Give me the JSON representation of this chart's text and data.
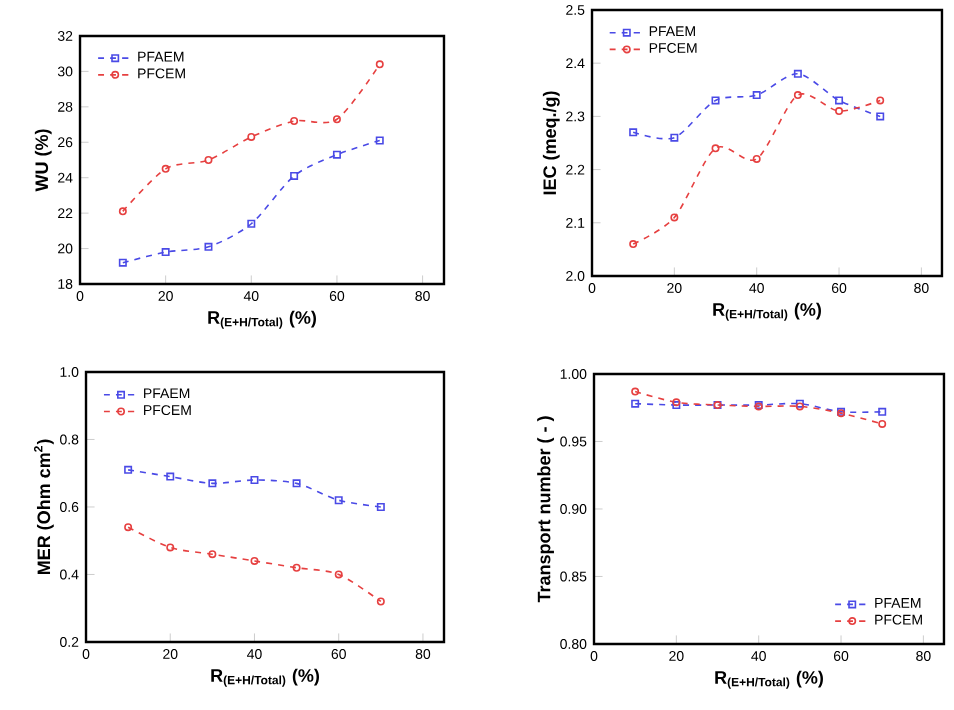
{
  "chart_data": [
    {
      "type": "line",
      "xlabel": "R$_{(E+H/Total)}$ (%)",
      "ylabel": "WU (%)",
      "x": [
        10,
        20,
        30,
        40,
        50,
        60,
        70
      ],
      "xlim": [
        0,
        85
      ],
      "xticks": [
        0,
        20,
        40,
        60,
        80
      ],
      "ylim": [
        18,
        32
      ],
      "yticks": [
        18,
        20,
        22,
        24,
        26,
        28,
        30,
        32
      ],
      "legend": "top left",
      "line_style": "dashed",
      "series": [
        {
          "name": "PFAEM",
          "color": "#4a4ae6",
          "marker": "square",
          "values": [
            19.2,
            19.8,
            20.1,
            21.4,
            24.1,
            25.3,
            26.1
          ]
        },
        {
          "name": "PFCEM",
          "color": "#e64040",
          "marker": "circle",
          "values": [
            22.1,
            24.5,
            25.0,
            26.3,
            27.2,
            27.3,
            30.4
          ]
        }
      ]
    },
    {
      "type": "line",
      "xlabel": "R$_{(E+H/Total)}$ (%)",
      "ylabel": "IEC (meq./g)",
      "x": [
        10,
        20,
        30,
        40,
        50,
        60,
        70
      ],
      "xlim": [
        0,
        85
      ],
      "xticks": [
        0,
        20,
        40,
        60,
        80
      ],
      "ylim": [
        2.0,
        2.5
      ],
      "yticks": [
        {
          "value": 2.0,
          "label": "2.0"
        },
        2.1,
        2.2,
        2.3,
        2.4,
        2.5
      ],
      "legend": "top left",
      "line_style": "dashed",
      "series": [
        {
          "name": "PFAEM",
          "color": "#4a4ae6",
          "marker": "square",
          "values": [
            2.27,
            2.26,
            2.33,
            2.34,
            2.38,
            2.33,
            2.3
          ]
        },
        {
          "name": "PFCEM",
          "color": "#e64040",
          "marker": "circle",
          "values": [
            2.06,
            2.11,
            2.24,
            2.22,
            2.34,
            2.31,
            2.33
          ]
        }
      ]
    },
    {
      "type": "line",
      "xlabel": "R$_{(E+H/Total)}$ (%)",
      "ylabel": "MER (Ohm cm$^{2}$)",
      "x": [
        10,
        20,
        30,
        40,
        50,
        60,
        70
      ],
      "xlim": [
        0,
        85
      ],
      "xticks": [
        0,
        20,
        40,
        60,
        80
      ],
      "ylim": [
        0.2,
        1.0
      ],
      "yticks": [
        0.2,
        0.4,
        0.6,
        0.8,
        {
          "value": 1.0,
          "label": "1.0"
        }
      ],
      "legend": "top left",
      "line_style": "dashed",
      "series": [
        {
          "name": "PFAEM",
          "color": "#4a4ae6",
          "marker": "square",
          "values": [
            0.71,
            0.69,
            0.67,
            0.68,
            0.67,
            0.62,
            0.6
          ]
        },
        {
          "name": "PFCEM",
          "color": "#e64040",
          "marker": "circle",
          "values": [
            0.54,
            0.48,
            0.46,
            0.44,
            0.42,
            0.4,
            0.32
          ]
        }
      ]
    },
    {
      "type": "line",
      "xlabel": "R$_{(E+H/Total)}$ (%)",
      "ylabel": "Transport number ( - )",
      "x": [
        10,
        20,
        30,
        40,
        50,
        60,
        70
      ],
      "xlim": [
        0,
        85
      ],
      "xticks": [
        0,
        20,
        40,
        60,
        80
      ],
      "ylim": [
        0.8,
        1.0
      ],
      "yticks": [
        {
          "value": 0.8,
          "label": "0.80"
        },
        0.85,
        {
          "value": 0.9,
          "label": "0.90"
        },
        0.95,
        {
          "value": 1.0,
          "label": "1.00"
        }
      ],
      "legend": "bottom right",
      "line_style": "dashed",
      "series": [
        {
          "name": "PFAEM",
          "color": "#4a4ae6",
          "marker": "square",
          "values": [
            0.978,
            0.977,
            0.977,
            0.977,
            0.978,
            0.972,
            0.972
          ]
        },
        {
          "name": "PFCEM",
          "color": "#e64040",
          "marker": "circle",
          "values": [
            0.987,
            0.979,
            0.977,
            0.976,
            0.976,
            0.971,
            0.963
          ]
        }
      ]
    }
  ]
}
